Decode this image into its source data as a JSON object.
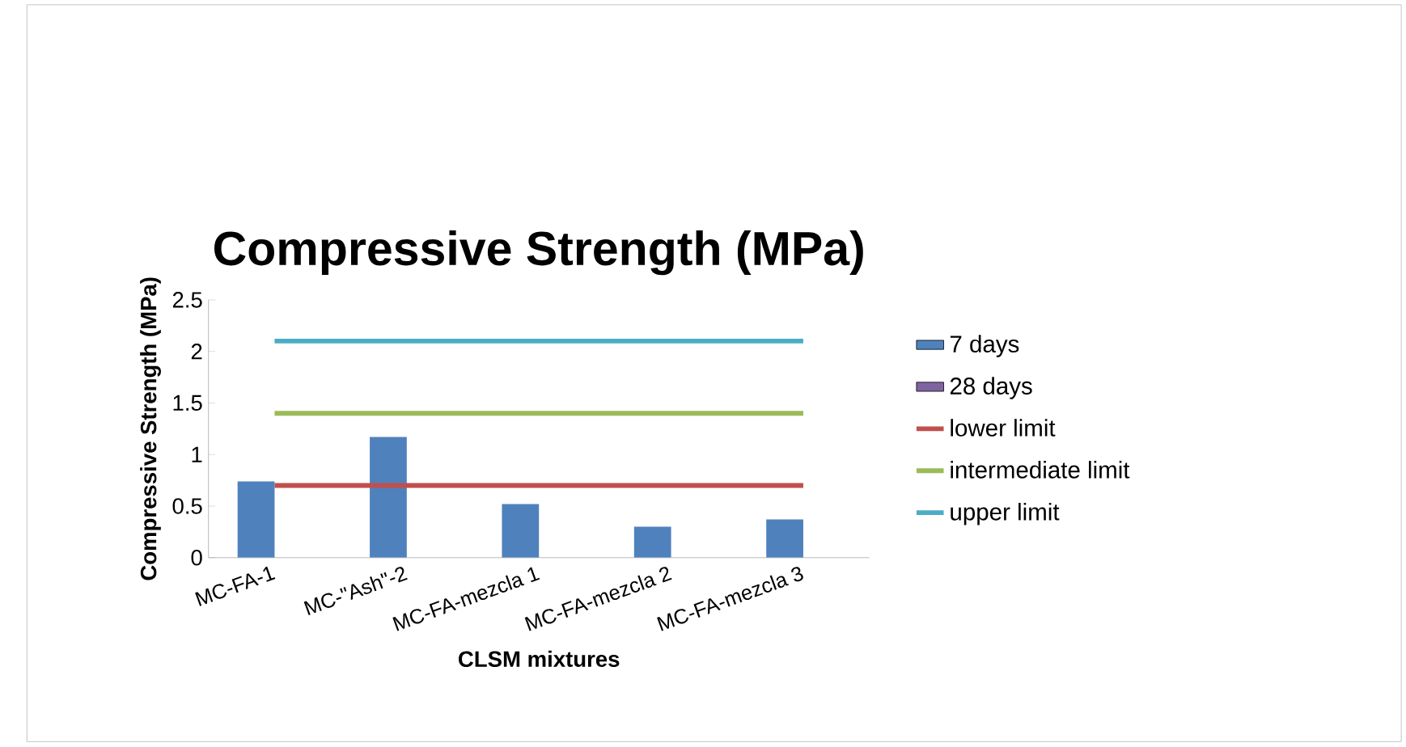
{
  "chart_data": {
    "type": "bar",
    "title": "Compressive Strength (MPa)",
    "xlabel": "CLSM mixtures",
    "ylabel": "Compressive Strength (MPa)",
    "categories": [
      "MC-FA-1",
      "MC-\"Ash\"-2",
      "MC-FA-mezcla 1",
      "MC-FA-mezcla 2",
      "MC-FA-mezcla 3"
    ],
    "series": [
      {
        "name": "7 days",
        "color": "#4f81bd",
        "values": [
          0.74,
          1.17,
          0.52,
          0.3,
          0.37
        ]
      },
      {
        "name": "28 days",
        "color": "#8064a2",
        "values": [
          null,
          null,
          null,
          null,
          null
        ]
      },
      {
        "name": "lower limit",
        "type": "line",
        "color": "#c0504d",
        "values": [
          0.7,
          0.7,
          0.7,
          0.7,
          0.7
        ]
      },
      {
        "name": "intermediate limit",
        "type": "line",
        "color": "#9bbb59",
        "values": [
          1.4,
          1.4,
          1.4,
          1.4,
          1.4
        ]
      },
      {
        "name": "upper limit",
        "type": "line",
        "color": "#4bacc6",
        "values": [
          2.1,
          2.1,
          2.1,
          2.1,
          2.1
        ]
      }
    ],
    "ylim": [
      0,
      2.5
    ],
    "yticks": [
      0,
      0.5,
      1,
      1.5,
      2,
      2.5
    ],
    "grid": false,
    "legend": "right"
  }
}
